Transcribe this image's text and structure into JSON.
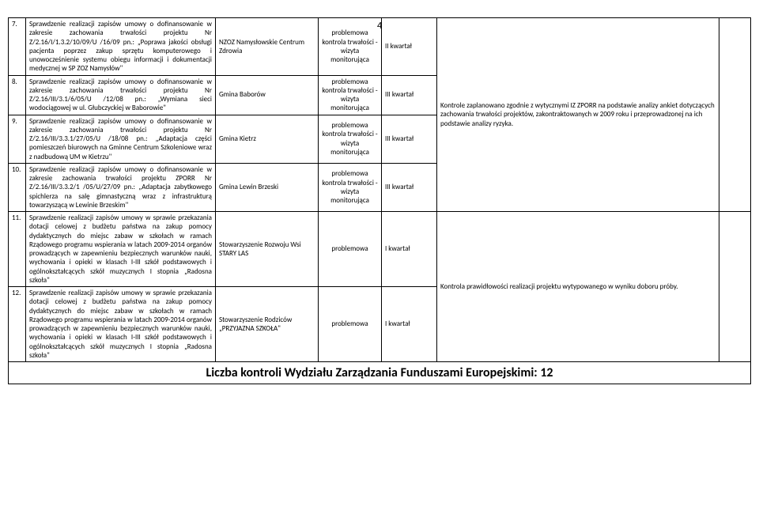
{
  "pageNumber": "4",
  "rows": [
    {
      "num": "7.",
      "desc": "Sprawdzenie realizacji zapisów umowy o dofinansowanie w zakresie zachowania trwałości projektu Nr Z/2.16/I/1.3.2/10/09/U /16/09 pn.: „Poprawa jakości obsługi pacjenta poprzez zakup sprzętu komputerowego i unowocześnienie systemu obiegu informacji i dokumentacji medycznej w SP ZOZ Namysłów\"",
      "entity": "NZOZ Namysłowskie Centrum Zdrowia",
      "type": "problemowa kontrola trwałości - wizyta monitorująca",
      "quarter": "II kwartał"
    },
    {
      "num": "8.",
      "desc": "Sprawdzenie realizacji zapisów umowy o dofinansowanie w zakresie zachowania trwałości projektu Nr Z/2.16/III/3.1/6/05/U /12/08 pn.: „Wymiana sieci wodociągowej w ul. Głubczyckiej w Baborowie\"",
      "entity": "Gmina Baborów",
      "type": "problemowa kontrola trwałości - wizyta monitorująca",
      "quarter": "III kwartał"
    },
    {
      "num": "9.",
      "desc": "Sprawdzenie realizacji zapisów umowy o dofinansowanie w zakresie zachowania trwałości projektu Nr Z/2.16/III/3.3.1/27/05/U /18/08 pn.: „Adaptacja części pomieszczeń biurowych na Gminne Centrum Szkoleniowe wraz z nadbudową UM w Kietrzu\"",
      "entity": "Gmina Kietrz",
      "type": "problemowa kontrola trwałości - wizyta monitorująca",
      "quarter": "III kwartał"
    },
    {
      "num": "10.",
      "desc": "Sprawdzenie realizacji zapisów umowy o dofinansowanie w zakresie zachowania trwałości projektu ZPORR Nr Z/2.16/III/3.3.2/1 /05/U/27/09 pn.: „Adaptacja zabytkowego spichlerza na salę gimnastyczną wraz z infrastrukturą towarzyszącą w Lewinie Brzeskim\"",
      "entity": "Gmina Lewin Brzeski",
      "type": "problemowa kontrola trwałości - wizyta monitorująca",
      "quarter": "III kwartał"
    },
    {
      "num": "11.",
      "desc": "Sprawdzenie realizacji zapisów umowy w sprawie przekazania dotacji celowej z budżetu państwa na zakup pomocy dydaktycznych do miejsc zabaw w szkołach w ramach Rządowego programu wspierania w latach 2009-2014 organów prowadzących w zapewnieniu bezpiecznych warunków nauki, wychowania i opieki w klasach I-III szkół podstawowych i ogólnokształcących szkół muzycznych I stopnia „Radosna szkoła\"",
      "entity": "Stowarzyszenie Rozwoju Wsi STARY LAS",
      "type": "problemowa",
      "quarter": "I kwartał"
    },
    {
      "num": "12.",
      "desc": "Sprawdzenie realizacji zapisów umowy w sprawie przekazania dotacji celowej z budżetu państwa na zakup pomocy dydaktycznych do miejsc zabaw w szkołach w ramach Rządowego programu wspierania w latach 2009-2014 organów prowadzących w zapewnieniu bezpiecznych warunków nauki, wychowania i opieki w klasach I-III szkół podstawowych i ogólnokształcących szkół muzycznych I stopnia „Radosna szkoła\"",
      "entity": "Stowarzyszenie Rodziców „PRZYJAZNA SZKOŁA\"",
      "type": "problemowa",
      "quarter": "I kwartał"
    }
  ],
  "notesTop": "Kontrole zaplanowano zgodnie z wytycznymi IZ ZPORR na podstawie analizy ankiet dotyczących zachowania trwałości projektów, zakontraktowanych w 2009 roku i przeprowadzonej na ich podstawie analizy ryzyka.",
  "notesBottom": "Kontrola prawidłowości realizacji projektu wytypowanego w wyniku doboru próby.",
  "footer": "Liczba kontroli Wydziału Zarządzania Funduszami Europejskimi: 12"
}
